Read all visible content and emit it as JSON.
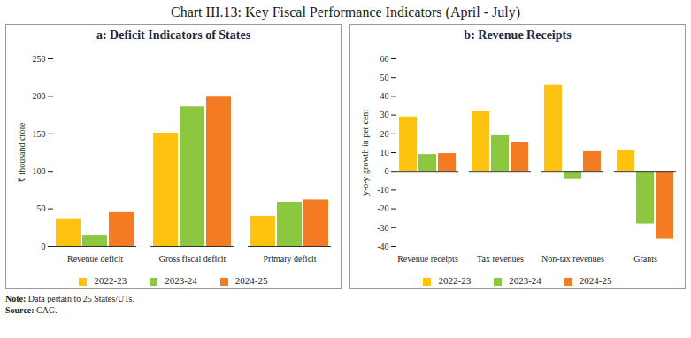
{
  "title": "Chart III.13: Key Fiscal Performance Indicators (April - July)",
  "note": "Note: Data pertain to 25 States/UTs.",
  "source": "Source: CAG.",
  "chart_data": [
    {
      "type": "bar",
      "title": "a: Deficit Indicators of States",
      "y_label": "₹ thousand crore",
      "categories": [
        "Revenue deficit",
        "Gross fiscal deficit",
        "Primary deficit"
      ],
      "series": [
        {
          "name": "2022-23",
          "color": "#FFC20E",
          "values": [
            37,
            151,
            40
          ]
        },
        {
          "name": "2023-24",
          "color": "#8DC63F",
          "values": [
            14,
            186,
            59
          ]
        },
        {
          "name": "2024-25",
          "color": "#F37B21",
          "values": [
            45,
            199,
            62
          ]
        }
      ],
      "ylim": [
        0,
        250
      ],
      "yticks": [
        0,
        50,
        100,
        150,
        200,
        250
      ],
      "grid": false,
      "legend": "bottom"
    },
    {
      "type": "bar",
      "title": "b: Revenue Receipts",
      "y_label": "y-o-y growth in per cent",
      "categories": [
        "Revenue receipts",
        "Tax revenues",
        "Non-tax revenues",
        "Grants"
      ],
      "series": [
        {
          "name": "2022-23",
          "color": "#FFC20E",
          "values": [
            29,
            32,
            46,
            11
          ]
        },
        {
          "name": "2023-24",
          "color": "#8DC63F",
          "values": [
            9,
            19,
            -4,
            -28
          ]
        },
        {
          "name": "2024-25",
          "color": "#F37B21",
          "values": [
            9.5,
            15.5,
            10.5,
            -36
          ]
        }
      ],
      "ylim": [
        -40,
        60
      ],
      "yticks": [
        -40,
        -30,
        -20,
        -10,
        0,
        10,
        20,
        30,
        40,
        50,
        60
      ],
      "grid": false,
      "legend": "bottom"
    }
  ]
}
